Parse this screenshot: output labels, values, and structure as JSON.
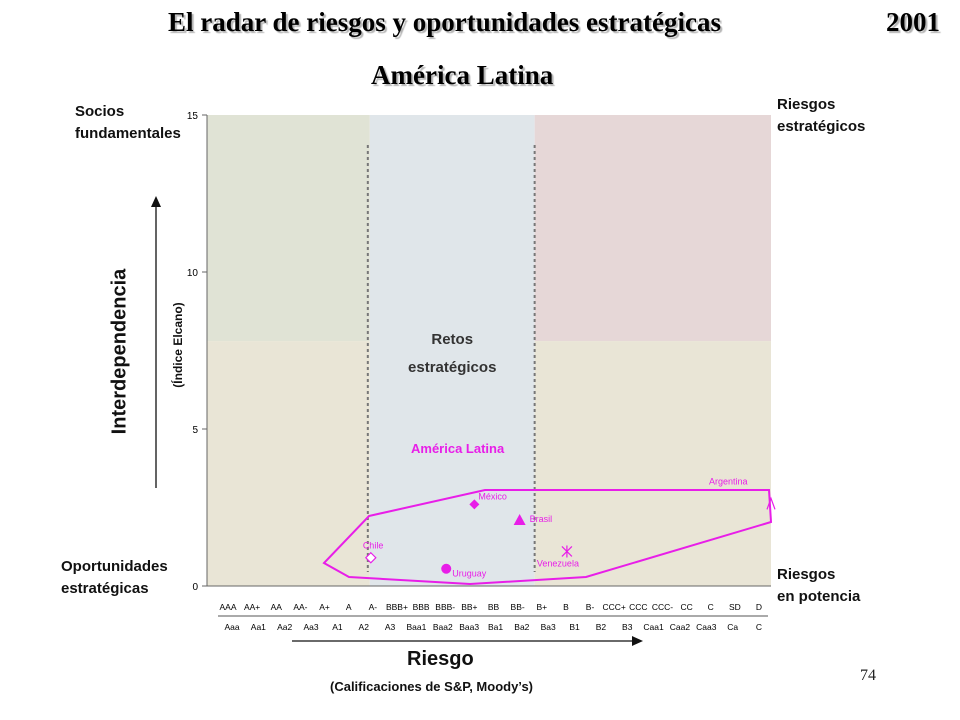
{
  "title": "El radar de riesgos y oportunidades estratégicas",
  "year": "2001",
  "subtitle": "América Latina",
  "corners": {
    "top_left": [
      "Socios",
      "fundamentales"
    ],
    "top_right": [
      "Riesgos",
      "estratégicos"
    ],
    "bottom_left": [
      "Oportunidades",
      "estratégicas"
    ],
    "bottom_right": [
      "Riesgos",
      "en potencia"
    ]
  },
  "center_zone": [
    "Retos",
    "estratégicos"
  ],
  "y_axis": {
    "label": "Interdependencia",
    "sublabel": "(Índice Elcano)"
  },
  "x_axis": {
    "label": "Riesgo",
    "sublabel": "(Calificaciones de S&P, Moody’s)"
  },
  "page_number": "74",
  "colors": {
    "green_zone": "#e0e3d5",
    "blue_zone": "#e0e6ea",
    "pink_zone": "#e6d7d7",
    "tan_zone": "#e9e5d6",
    "magenta": "#e81ee8"
  },
  "chart_data": {
    "type": "scatter",
    "ylim": [
      0,
      15
    ],
    "yticks": [
      "0",
      "5",
      "10",
      "15"
    ],
    "x_tick_labels_sp": [
      "AAA",
      "AA+",
      "AA",
      "AA-",
      "A+",
      "A",
      "A-",
      "BBB+",
      "BBB",
      "BBB-",
      "BB+",
      "BB",
      "BB-",
      "B+",
      "B",
      "B-",
      "CCC+",
      "CCC",
      "CCC-",
      "CC",
      "C",
      "SD",
      "D"
    ],
    "x_tick_labels_moodys": [
      "Aaa",
      "Aa1",
      "Aa2",
      "Aa3",
      "A1",
      "A2",
      "A3",
      "Baa1",
      "Baa2",
      "Baa3",
      "Ba1",
      "Ba2",
      "Ba3",
      "B1",
      "B2",
      "B3",
      "Caa1",
      "Caa2",
      "Caa3",
      "Ca",
      "C"
    ],
    "zones": {
      "retos_x_range": [
        "A-",
        "BB-"
      ],
      "riesgos_y_min": 7.8
    },
    "group_label": "América Latina",
    "points": [
      {
        "name": "México",
        "rating": "BB+",
        "y": 2.6,
        "marker": "diamond"
      },
      {
        "name": "Brasil",
        "rating": "BB-",
        "y": 2.1,
        "marker": "triangle"
      },
      {
        "name": "Chile",
        "rating": "A-",
        "y": 0.9,
        "marker": "diamond-open"
      },
      {
        "name": "Uruguay",
        "rating": "BBB-",
        "y": 0.55,
        "marker": "circle"
      },
      {
        "name": "Venezuela",
        "rating": "B",
        "y": 1.1,
        "marker": "star"
      },
      {
        "name": "Argentina",
        "rating": "D",
        "y": 2.6,
        "marker": "caret"
      }
    ]
  }
}
